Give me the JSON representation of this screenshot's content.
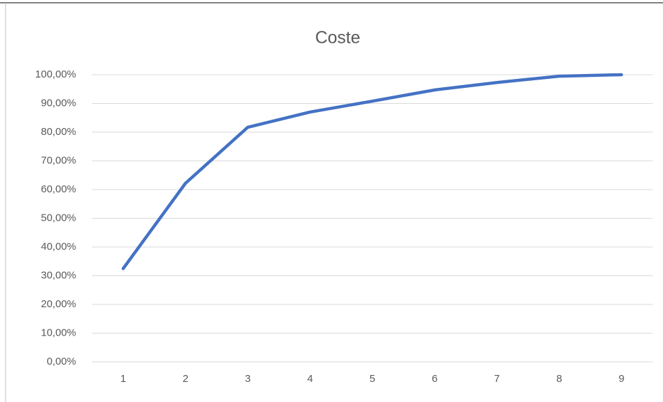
{
  "chart_data": {
    "type": "line",
    "title": "Coste",
    "categories": [
      "1",
      "2",
      "3",
      "4",
      "5",
      "6",
      "7",
      "8",
      "9"
    ],
    "series": [
      {
        "name": "Coste",
        "color": "#4472c4",
        "values": [
          32.5,
          62.2,
          81.7,
          87.0,
          90.8,
          94.7,
          97.3,
          99.5,
          100.0
        ]
      }
    ],
    "ylim": [
      0,
      100
    ],
    "yticks": [
      {
        "value": 0,
        "label": "0,00%"
      },
      {
        "value": 10,
        "label": "10,00%"
      },
      {
        "value": 20,
        "label": "20,00%"
      },
      {
        "value": 30,
        "label": "30,00%"
      },
      {
        "value": 40,
        "label": "40,00%"
      },
      {
        "value": 50,
        "label": "50,00%"
      },
      {
        "value": 60,
        "label": "60,00%"
      },
      {
        "value": 70,
        "label": "70,00%"
      },
      {
        "value": 80,
        "label": "80,00%"
      },
      {
        "value": 90,
        "label": "90,00%"
      },
      {
        "value": 100,
        "label": "100,00%"
      }
    ],
    "grid": true
  }
}
